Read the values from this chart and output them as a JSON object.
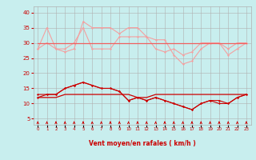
{
  "x": [
    0,
    1,
    2,
    3,
    4,
    5,
    6,
    7,
    8,
    9,
    10,
    11,
    12,
    13,
    14,
    15,
    16,
    17,
    18,
    19,
    20,
    21,
    22,
    23
  ],
  "line1": [
    28,
    30,
    28,
    28,
    30,
    35,
    28,
    28,
    28,
    32,
    32,
    32,
    32,
    31,
    31,
    26,
    23,
    24,
    28,
    30,
    30,
    26,
    28,
    30
  ],
  "line2": [
    28,
    35,
    28,
    27,
    28,
    37,
    35,
    35,
    35,
    33,
    35,
    35,
    32,
    28,
    27,
    28,
    26,
    27,
    30,
    30,
    30,
    28,
    30,
    30
  ],
  "line3": [
    30,
    30,
    30,
    30,
    30,
    30,
    30,
    30,
    30,
    30,
    30,
    30,
    30,
    30,
    30,
    30,
    30,
    30,
    30,
    30,
    30,
    30,
    30,
    30
  ],
  "line4": [
    12,
    13,
    13,
    15,
    16,
    17,
    16,
    15,
    15,
    14,
    11,
    12,
    11,
    12,
    11,
    10,
    9,
    8,
    10,
    11,
    10,
    10,
    12,
    13
  ],
  "line5": [
    13,
    13,
    13,
    15,
    16,
    17,
    16,
    15,
    15,
    14,
    11,
    12,
    11,
    12,
    11,
    10,
    9,
    8,
    10,
    11,
    11,
    10,
    12,
    13
  ],
  "line6": [
    12,
    12,
    12,
    13,
    13,
    13,
    13,
    13,
    13,
    13,
    13,
    12,
    12,
    13,
    13,
    13,
    13,
    13,
    13,
    13,
    13,
    13,
    13,
    13
  ],
  "color_light": "#f4a0a0",
  "color_medium": "#f06060",
  "color_dark": "#cc0000",
  "bg_color": "#c8eeee",
  "grid_color": "#b0b0b0",
  "xlabel": "Vent moyen/en rafales ( km/h )",
  "ylim": [
    3,
    42
  ],
  "yticks": [
    5,
    10,
    15,
    20,
    25,
    30,
    35,
    40
  ],
  "arrow_color": "#cc0000",
  "figsize": [
    3.2,
    2.0
  ],
  "dpi": 100
}
